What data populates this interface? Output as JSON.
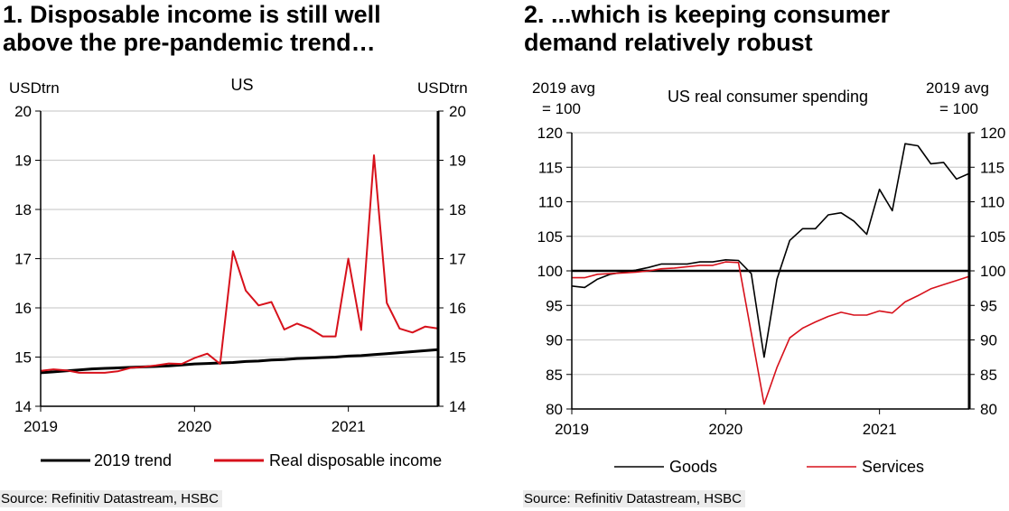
{
  "charts": [
    {
      "title_line1": "1. Disposable income is still well",
      "title_line2": "above the pre-pandemic trend…",
      "source": "Source: Refinitiv Datastream, HSBC"
    },
    {
      "title_line1": "2. ...which is keeping consumer",
      "title_line2": "demand relatively robust",
      "source": "Source: Refinitiv Datastream, HSBC"
    }
  ],
  "chart_data": [
    {
      "type": "line",
      "title": "US",
      "ylabel_left": "USDtrn",
      "ylabel_right": "USDtrn",
      "ylim": [
        14,
        20
      ],
      "yticks": [
        14,
        15,
        16,
        17,
        18,
        19,
        20
      ],
      "xticks": [
        "2019",
        "2020",
        "2021"
      ],
      "x_start": "2019-01",
      "x_end": "2021-08",
      "frequency": "monthly",
      "grid": true,
      "legend_position": "bottom",
      "series": [
        {
          "name": "2019 trend",
          "color": "#000000",
          "values": [
            14.68,
            14.7,
            14.72,
            14.74,
            14.76,
            14.77,
            14.78,
            14.79,
            14.8,
            14.81,
            14.82,
            14.84,
            14.86,
            14.87,
            14.88,
            14.89,
            14.91,
            14.92,
            14.94,
            14.95,
            14.97,
            14.98,
            14.99,
            15.0,
            15.02,
            15.03,
            15.05,
            15.07,
            15.09,
            15.11,
            15.13,
            15.15
          ]
        },
        {
          "name": "Real disposable income",
          "color": "#d7111b",
          "values": [
            14.72,
            14.75,
            14.73,
            14.68,
            14.68,
            14.68,
            14.71,
            14.78,
            14.8,
            14.83,
            14.87,
            14.86,
            14.98,
            15.07,
            14.86,
            17.15,
            16.35,
            16.05,
            16.12,
            15.56,
            15.68,
            15.58,
            15.42,
            15.42,
            17.0,
            15.55,
            19.1,
            16.1,
            15.58,
            15.5,
            15.62,
            15.58
          ]
        }
      ]
    },
    {
      "type": "line",
      "title": "US real consumer spending",
      "ylabel_left": [
        "2019 avg",
        "= 100"
      ],
      "ylabel_right": [
        "2019 avg",
        "= 100"
      ],
      "ylim": [
        80,
        120
      ],
      "yticks": [
        80,
        85,
        90,
        95,
        100,
        105,
        110,
        115,
        120
      ],
      "xticks": [
        "2019",
        "2020",
        "2021"
      ],
      "x_start": "2019-01",
      "x_end": "2021-08",
      "frequency": "monthly",
      "grid": true,
      "reference_line": 100,
      "legend_position": "bottom",
      "series": [
        {
          "name": "Goods",
          "color": "#000000",
          "values": [
            97.8,
            97.6,
            98.8,
            99.5,
            99.8,
            100.1,
            100.5,
            101.0,
            101.0,
            101.0,
            101.3,
            101.3,
            101.6,
            101.5,
            99.6,
            87.5,
            98.8,
            104.4,
            106.1,
            106.1,
            108.1,
            108.4,
            107.2,
            105.3,
            111.8,
            108.7,
            118.4,
            118.1,
            115.5,
            115.7,
            113.3,
            114.1
          ]
        },
        {
          "name": "Services",
          "color": "#d7111b",
          "values": [
            99.0,
            99.0,
            99.5,
            99.6,
            99.7,
            99.8,
            100.0,
            100.3,
            100.4,
            100.6,
            100.8,
            100.8,
            101.3,
            101.2,
            91.0,
            80.7,
            86.0,
            90.3,
            91.7,
            92.6,
            93.4,
            94.0,
            93.6,
            93.6,
            94.2,
            93.9,
            95.5,
            96.4,
            97.4,
            98.0,
            98.6,
            99.2
          ]
        }
      ]
    }
  ]
}
